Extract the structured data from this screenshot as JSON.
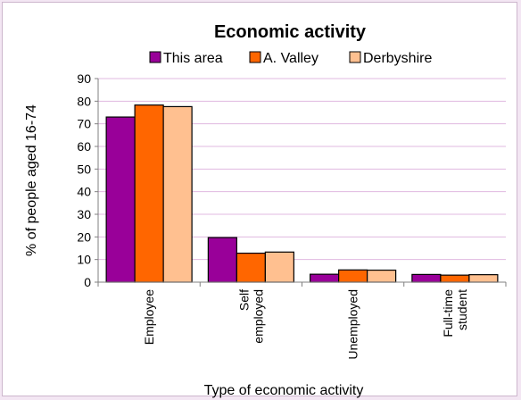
{
  "chart_data": {
    "type": "bar",
    "title": "Economic activity",
    "xlabel": "Type of economic activity",
    "ylabel": "% of people aged 16-74",
    "ylim": [
      0,
      90
    ],
    "yticks": [
      "0",
      "10",
      "20",
      "30",
      "40",
      "50",
      "60",
      "70",
      "80",
      "90"
    ],
    "grid": true,
    "legend_position": "top",
    "categories": [
      [
        "Employee"
      ],
      [
        "Self",
        "employed"
      ],
      [
        "Unemployed"
      ],
      [
        "Full-time",
        "student"
      ]
    ],
    "series": [
      {
        "name": "This area",
        "color": "#990099",
        "values": [
          73,
          19.7,
          3.5,
          3.4
        ]
      },
      {
        "name": "A. Valley",
        "color": "#ff6600",
        "values": [
          78.3,
          12.8,
          5.4,
          3.1
        ]
      },
      {
        "name": "Derbyshire",
        "color": "#ffc090",
        "values": [
          77.6,
          13.3,
          5.3,
          3.3
        ]
      }
    ]
  }
}
